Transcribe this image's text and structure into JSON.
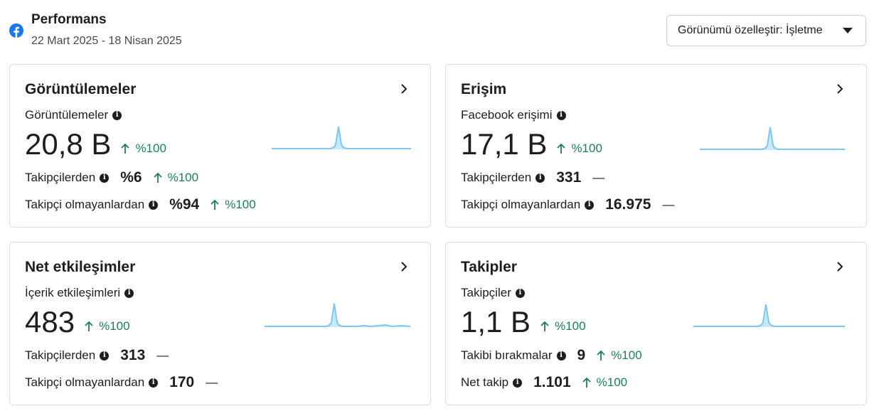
{
  "header": {
    "title": "Performans",
    "date_range": "22 Mart 2025 - 18 Nisan 2025",
    "customize_label": "Görünümü özelleştir: İşletme",
    "brand_color": "#1877f2"
  },
  "colors": {
    "positive": "#1d7e5b",
    "spark_line": "#7cc8f2",
    "spark_fill": "#c9e8fa"
  },
  "cards": [
    {
      "title": "Görüntülemeler",
      "metric_label": "Görüntülemeler",
      "value": "20,8 B",
      "delta": "%100",
      "rows": [
        {
          "label": "Takipçilerden",
          "value": "%6",
          "delta": "%100"
        },
        {
          "label": "Takipçi olmayanlardan",
          "value": "%94",
          "delta": "%100"
        }
      ]
    },
    {
      "title": "Erişim",
      "metric_label": "Facebook erişimi",
      "value": "17,1 B",
      "delta": "%100",
      "rows": [
        {
          "label": "Takipçilerden",
          "value": "331",
          "delta": "—"
        },
        {
          "label": "Takipçi olmayanlardan",
          "value": "16.975",
          "delta": "—"
        }
      ]
    },
    {
      "title": "Net etkileşimler",
      "metric_label": "İçerik etkileşimleri",
      "value": "483",
      "delta": "%100",
      "rows": [
        {
          "label": "Takipçilerden",
          "value": "313",
          "delta": "—"
        },
        {
          "label": "Takipçi olmayanlardan",
          "value": "170",
          "delta": "—"
        }
      ]
    },
    {
      "title": "Takipler",
      "metric_label": "Takipçiler",
      "value": "1,1 B",
      "delta": "%100",
      "rows": [
        {
          "label": "Takibi bırakmalar",
          "value": "9",
          "delta": "%100"
        },
        {
          "label": "Net takip",
          "value": "1.101",
          "delta": "%100"
        }
      ]
    }
  ]
}
